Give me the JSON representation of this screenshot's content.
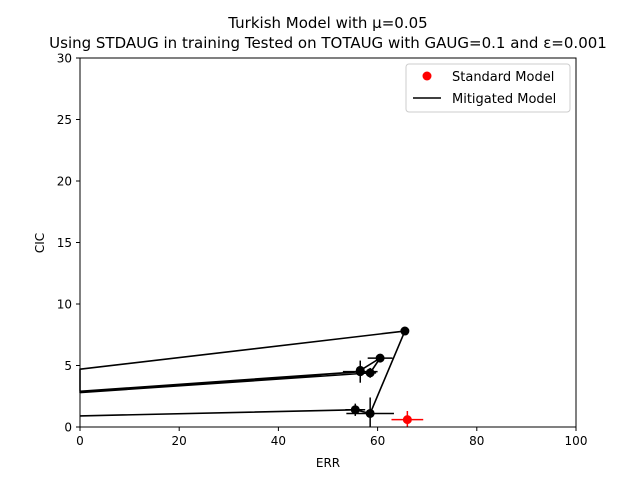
{
  "chart_data": {
    "type": "scatter",
    "title": "Turkish Model with μ=0.05",
    "subtitle": "Using STDAUG in training Tested on TOTAUG with GAUG=0.1 and ε=0.001",
    "xlabel": "ERR",
    "ylabel": "CIC",
    "xlim": [
      0,
      100
    ],
    "ylim": [
      0,
      30
    ],
    "xticks": [
      0,
      20,
      40,
      60,
      80,
      100
    ],
    "yticks": [
      0,
      5,
      10,
      15,
      20,
      25,
      30
    ],
    "grid": false,
    "legend_position": "top-right",
    "series": [
      {
        "name": "Standard Model",
        "kind": "scatter",
        "color": "#ff0000",
        "points": [
          {
            "x": 66.0,
            "y": 0.6,
            "xerr": 3.2,
            "yerr": 0.7
          }
        ]
      },
      {
        "name": "Mitigated Model",
        "kind": "line",
        "color": "#000000",
        "points": [
          {
            "x": 0,
            "y": 0.9
          },
          {
            "x": 55.5,
            "y": 1.4,
            "xerr": 2.0,
            "yerr": 0.5
          },
          {
            "x": 58.5,
            "y": 1.1,
            "xerr": 4.8,
            "yerr": 1.3
          },
          {
            "x": 65.5,
            "y": 7.8
          },
          {
            "x": 0,
            "y": 4.7
          },
          {
            "x": 0,
            "y": 2.9
          },
          {
            "x": 56.5,
            "y": 4.5,
            "xerr": 3.5,
            "yerr": 0.9
          },
          {
            "x": 0,
            "y": 2.8
          },
          {
            "x": 58.5,
            "y": 4.4,
            "xerr": 1.2,
            "yerr": 0.4
          },
          {
            "x": 60.5,
            "y": 5.6,
            "xerr": 2.5,
            "yerr": 0.3
          },
          {
            "x": 56.5,
            "y": 4.6
          }
        ]
      }
    ]
  }
}
